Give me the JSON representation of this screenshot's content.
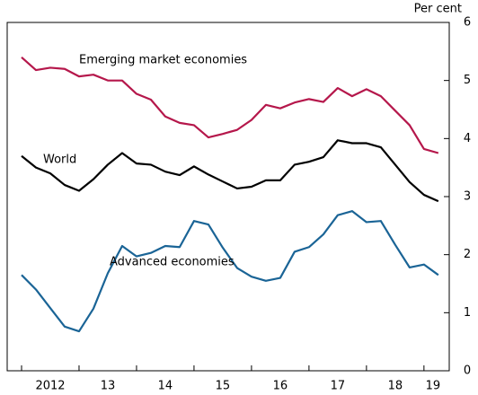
{
  "chart_data": {
    "type": "line",
    "y_axis_label": "Per cent",
    "x": [
      2012,
      2012.25,
      2012.5,
      2012.75,
      2013,
      2013.25,
      2013.5,
      2013.75,
      2014,
      2014.25,
      2014.5,
      2014.75,
      2015,
      2015.25,
      2015.5,
      2015.75,
      2016,
      2016.25,
      2016.5,
      2016.75,
      2017,
      2017.25,
      2017.5,
      2017.75,
      2018,
      2018.25,
      2018.5,
      2018.75,
      2019,
      2019.25
    ],
    "series": [
      {
        "name": "Emerging market economies",
        "color": "#b5174b",
        "values": [
          5.4,
          5.18,
          5.22,
          5.2,
          5.07,
          5.1,
          5.0,
          5.0,
          4.77,
          4.67,
          4.38,
          4.27,
          4.23,
          4.02,
          4.08,
          4.15,
          4.32,
          4.58,
          4.52,
          4.62,
          4.68,
          4.63,
          4.87,
          4.73,
          4.85,
          4.73,
          4.48,
          4.23,
          3.82,
          3.75
        ]
      },
      {
        "name": "World",
        "color": "#000000",
        "values": [
          3.7,
          3.5,
          3.4,
          3.2,
          3.1,
          3.3,
          3.55,
          3.75,
          3.57,
          3.55,
          3.43,
          3.37,
          3.52,
          3.38,
          3.26,
          3.14,
          3.17,
          3.28,
          3.28,
          3.55,
          3.6,
          3.68,
          3.97,
          3.92,
          3.92,
          3.85,
          3.55,
          3.25,
          3.03,
          2.92
        ]
      },
      {
        "name": "Advanced economies",
        "color": "#1a6496",
        "values": [
          1.65,
          1.4,
          1.08,
          0.76,
          0.68,
          1.07,
          1.68,
          2.15,
          1.97,
          2.03,
          2.15,
          2.13,
          2.58,
          2.52,
          2.12,
          1.77,
          1.62,
          1.55,
          1.6,
          2.05,
          2.13,
          2.35,
          2.68,
          2.75,
          2.56,
          2.58,
          2.17,
          1.78,
          1.83,
          1.65
        ]
      }
    ],
    "xlim": [
      2011.75,
      2019.44
    ],
    "xticks": [
      2012,
      {
        "value": 2013,
        "label": "13"
      },
      {
        "value": 2014,
        "label": "14"
      },
      {
        "value": 2015,
        "label": "15"
      },
      {
        "value": 2016,
        "label": "16"
      },
      {
        "value": 2017,
        "label": "17"
      },
      {
        "value": 2018,
        "label": "18"
      },
      {
        "value": 2019,
        "label": "19"
      }
    ],
    "ylim": [
      0,
      6
    ],
    "yticks": [
      0,
      1,
      2,
      3,
      4,
      5,
      6
    ]
  }
}
